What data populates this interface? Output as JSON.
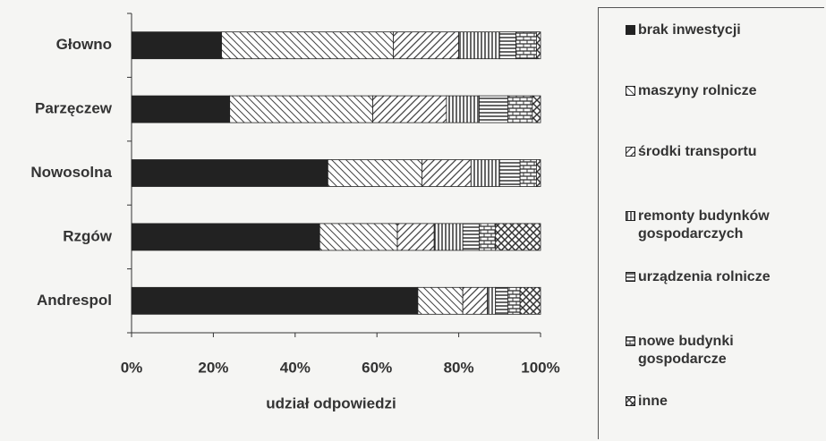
{
  "chart_data": {
    "type": "stacked-bar-horizontal",
    "categories": [
      "Głowno",
      "Parzęczew",
      "Nowosolna",
      "Rzgów",
      "Andrespol"
    ],
    "series": [
      {
        "name": "brak inwestycji",
        "color": "#222222",
        "values": [
          22,
          24,
          48,
          46,
          70
        ]
      },
      {
        "name": "maszyny rolnicze",
        "color": "#444444",
        "values": [
          42,
          35,
          23,
          19,
          11
        ]
      },
      {
        "name": "środki transportu",
        "color": "#444444",
        "values": [
          16,
          18,
          12,
          9,
          6
        ]
      },
      {
        "name": "remonty budynków gospodarczych",
        "color": "#333333",
        "values": [
          10,
          8,
          7,
          7,
          2
        ]
      },
      {
        "name": "urządzenia rolnicze",
        "color": "#333333",
        "values": [
          4,
          7,
          5,
          4,
          3
        ]
      },
      {
        "name": "nowe budynki gospodarcze",
        "color": "#333333",
        "values": [
          5,
          6,
          4,
          4,
          3
        ]
      },
      {
        "name": "inne",
        "color": "#333333",
        "values": [
          1,
          2,
          1,
          11,
          5
        ]
      }
    ],
    "xlabel": "udział odpowiedzi",
    "xlim": [
      0,
      100
    ],
    "xticks": [
      {
        "value": 0,
        "label": "0%"
      },
      {
        "value": 20,
        "label": "20%"
      },
      {
        "value": 40,
        "label": "40%"
      },
      {
        "value": 60,
        "label": "60%"
      },
      {
        "value": 80,
        "label": "80%"
      },
      {
        "value": 100,
        "label": "100%"
      }
    ],
    "legend": "right"
  }
}
